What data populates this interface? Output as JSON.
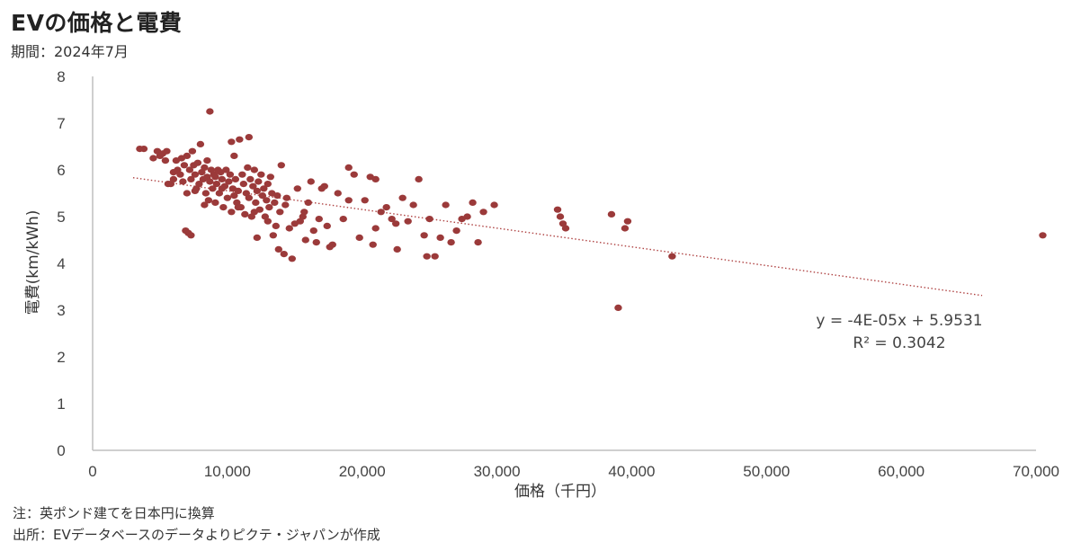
{
  "header": {
    "title": "EVの価格と電費",
    "period": "期間：2024年7月"
  },
  "footer": {
    "note1": "注：英ポンド建てを日本円に換算",
    "note2": "出所：EVデータベースのデータよりピクテ・ジャパンが作成"
  },
  "trendline": {
    "equation": "y = -4E-05x + 5.9531",
    "r_squared": "R² = 0.3042"
  },
  "colors": {
    "point": "#9b3a3a",
    "trend": "#b04545",
    "axis": "#bfbfbf"
  },
  "chart_data": {
    "type": "scatter",
    "title": "EVの価格と電費",
    "xlabel": "価格（千円）",
    "ylabel": "電費(km/kWh)",
    "xlim": [
      0,
      70000
    ],
    "ylim": [
      0,
      8
    ],
    "x_ticks": [
      "0",
      "10,000",
      "20,000",
      "30,000",
      "40,000",
      "50,000",
      "60,000",
      "70,000"
    ],
    "y_ticks": [
      "0",
      "1",
      "2",
      "3",
      "4",
      "5",
      "6",
      "7",
      "8"
    ],
    "grid": false,
    "trendline": {
      "slope": -4e-05,
      "intercept": 5.9531,
      "r2": 0.3042,
      "x_range": [
        3000,
        66000
      ]
    },
    "points": [
      [
        3500,
        6.45
      ],
      [
        3800,
        6.45
      ],
      [
        4500,
        6.25
      ],
      [
        4800,
        6.4
      ],
      [
        5000,
        6.3
      ],
      [
        5200,
        6.35
      ],
      [
        5500,
        6.4
      ],
      [
        5600,
        5.7
      ],
      [
        5800,
        5.7
      ],
      [
        6000,
        5.8
      ],
      [
        6200,
        6.2
      ],
      [
        6300,
        6.0
      ],
      [
        6500,
        5.9
      ],
      [
        6700,
        5.75
      ],
      [
        6800,
        6.1
      ],
      [
        7000,
        6.3
      ],
      [
        7000,
        5.5
      ],
      [
        7200,
        6.0
      ],
      [
        7300,
        5.8
      ],
      [
        7400,
        6.4
      ],
      [
        7500,
        6.1
      ],
      [
        7600,
        5.9
      ],
      [
        7700,
        5.6
      ],
      [
        7800,
        6.15
      ],
      [
        7900,
        5.7
      ],
      [
        8000,
        6.55
      ],
      [
        8100,
        5.95
      ],
      [
        8200,
        5.8
      ],
      [
        8300,
        6.05
      ],
      [
        8400,
        5.5
      ],
      [
        8500,
        5.85
      ],
      [
        8500,
        6.2
      ],
      [
        8600,
        5.35
      ],
      [
        8700,
        5.75
      ],
      [
        8800,
        6.0
      ],
      [
        8900,
        5.6
      ],
      [
        9000,
        5.9
      ],
      [
        9100,
        5.3
      ],
      [
        9200,
        5.7
      ],
      [
        9300,
        6.0
      ],
      [
        9400,
        5.5
      ],
      [
        9500,
        5.95
      ],
      [
        9600,
        5.8
      ],
      [
        9700,
        5.2
      ],
      [
        9800,
        5.65
      ],
      [
        9900,
        6.0
      ],
      [
        10000,
        5.4
      ],
      [
        10100,
        5.75
      ],
      [
        10200,
        5.9
      ],
      [
        10300,
        5.1
      ],
      [
        10400,
        5.6
      ],
      [
        10500,
        6.3
      ],
      [
        10600,
        5.8
      ],
      [
        10700,
        5.3
      ],
      [
        10800,
        5.55
      ],
      [
        10900,
        6.65
      ],
      [
        11000,
        5.2
      ],
      [
        11100,
        5.9
      ],
      [
        11200,
        5.7
      ],
      [
        11300,
        5.05
      ],
      [
        11400,
        5.5
      ],
      [
        11500,
        6.05
      ],
      [
        11600,
        5.4
      ],
      [
        11700,
        5.8
      ],
      [
        11800,
        5.0
      ],
      [
        11900,
        5.65
      ],
      [
        12000,
        6.0
      ],
      [
        12100,
        5.3
      ],
      [
        12200,
        5.55
      ],
      [
        12300,
        5.75
      ],
      [
        12400,
        5.15
      ],
      [
        12500,
        5.9
      ],
      [
        12600,
        5.45
      ],
      [
        12700,
        5.6
      ],
      [
        12800,
        5.0
      ],
      [
        12900,
        5.35
      ],
      [
        13000,
        5.7
      ],
      [
        13100,
        5.2
      ],
      [
        13200,
        5.85
      ],
      [
        13300,
        5.5
      ],
      [
        13400,
        4.6
      ],
      [
        13500,
        5.3
      ],
      [
        13600,
        4.8
      ],
      [
        13700,
        5.45
      ],
      [
        13800,
        4.3
      ],
      [
        13900,
        5.1
      ],
      [
        14000,
        6.1
      ],
      [
        14200,
        4.2
      ],
      [
        14400,
        5.4
      ],
      [
        14600,
        4.75
      ],
      [
        14800,
        4.1
      ],
      [
        15000,
        4.85
      ],
      [
        15200,
        5.6
      ],
      [
        15400,
        4.9
      ],
      [
        15600,
        5.0
      ],
      [
        15800,
        4.5
      ],
      [
        16000,
        5.3
      ],
      [
        16200,
        5.75
      ],
      [
        16400,
        4.7
      ],
      [
        16600,
        4.45
      ],
      [
        16800,
        4.95
      ],
      [
        17000,
        5.6
      ],
      [
        17400,
        4.8
      ],
      [
        17800,
        4.4
      ],
      [
        18200,
        5.5
      ],
      [
        18600,
        4.95
      ],
      [
        19000,
        6.05
      ],
      [
        19400,
        5.9
      ],
      [
        19800,
        4.55
      ],
      [
        20200,
        5.35
      ],
      [
        20600,
        5.85
      ],
      [
        21000,
        4.75
      ],
      [
        21400,
        5.1
      ],
      [
        21800,
        5.2
      ],
      [
        22200,
        4.95
      ],
      [
        22600,
        4.3
      ],
      [
        23000,
        5.4
      ],
      [
        23400,
        4.9
      ],
      [
        23800,
        5.25
      ],
      [
        24200,
        5.8
      ],
      [
        24600,
        4.6
      ],
      [
        25000,
        4.95
      ],
      [
        25400,
        4.15
      ],
      [
        25800,
        4.55
      ],
      [
        26200,
        5.25
      ],
      [
        26600,
        4.45
      ],
      [
        27000,
        4.7
      ],
      [
        27400,
        4.95
      ],
      [
        27800,
        5.0
      ],
      [
        28200,
        5.3
      ],
      [
        28600,
        4.45
      ],
      [
        29000,
        5.1
      ],
      [
        29800,
        5.25
      ],
      [
        5400,
        6.2
      ],
      [
        6600,
        6.25
      ],
      [
        6900,
        4.7
      ],
      [
        7100,
        4.65
      ],
      [
        7300,
        4.6
      ],
      [
        8700,
        7.25
      ],
      [
        10300,
        6.6
      ],
      [
        11600,
        6.7
      ],
      [
        17200,
        5.65
      ],
      [
        19000,
        5.35
      ],
      [
        21000,
        5.8
      ],
      [
        24800,
        4.15
      ],
      [
        34500,
        5.15
      ],
      [
        34700,
        5.0
      ],
      [
        34900,
        4.85
      ],
      [
        35100,
        4.75
      ],
      [
        38500,
        5.05
      ],
      [
        39700,
        4.9
      ],
      [
        39500,
        4.75
      ],
      [
        43000,
        4.15
      ],
      [
        39000,
        3.05
      ],
      [
        70500,
        4.6
      ],
      [
        12000,
        5.1
      ],
      [
        13000,
        4.9
      ],
      [
        14300,
        5.25
      ],
      [
        15700,
        5.1
      ],
      [
        17600,
        4.35
      ],
      [
        20800,
        4.4
      ],
      [
        22500,
        4.85
      ],
      [
        9600,
        5.6
      ],
      [
        10800,
        5.2
      ],
      [
        12200,
        4.55
      ],
      [
        6000,
        5.95
      ],
      [
        7600,
        5.55
      ],
      [
        8300,
        5.25
      ],
      [
        9100,
        5.85
      ],
      [
        10500,
        5.45
      ]
    ]
  }
}
